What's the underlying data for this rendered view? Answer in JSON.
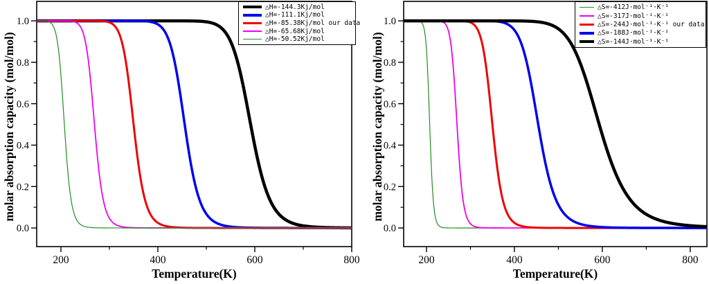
{
  "figure": {
    "background": "#ffffff",
    "text_color": "#000000",
    "axis_color": "#000000"
  },
  "chart_data": [
    {
      "id": "enthalpy-panel",
      "type": "line",
      "xlabel": "Temperature(K)",
      "ylabel": "molar absorption capacity (mol/mol)",
      "xlim": [
        150,
        800
      ],
      "ylim": [
        -0.09,
        1.094
      ],
      "xticks": [
        200,
        400,
        600,
        800
      ],
      "xtick_labels": [
        "200",
        "400",
        "600",
        "800"
      ],
      "xminor": [
        300,
        500,
        700
      ],
      "yticks": [
        0.0,
        0.2,
        0.4,
        0.6,
        0.8,
        1.0
      ],
      "ytick_labels": [
        "0.0",
        "0.2",
        "0.4",
        "0.6",
        "0.8",
        "1.0"
      ],
      "yminor": [
        0.1,
        0.3,
        0.5,
        0.7,
        0.9
      ],
      "grid": false,
      "legend_position": "top-right",
      "curve_model": "theta(T) = 1/(1+exp((dH - T*dS)/(R*T))), R = 8.314 J/(mol*K)",
      "series": [
        {
          "label": "△H=-144.3Kj/mol",
          "color": "#000000",
          "line_width": 4.5,
          "dH_J_per_mol": -144300,
          "dS_J_per_molK": -244,
          "T_half_K": 591
        },
        {
          "label": "△H=-111.1Kj/mol",
          "color": "#0000EE",
          "line_width": 3.5,
          "dH_J_per_mol": -111100,
          "dS_J_per_molK": -244,
          "T_half_K": 455
        },
        {
          "label": "△H=-85.38Kj/mol our data",
          "color": "#EE0000",
          "line_width": 3.0,
          "dH_J_per_mol": -85380,
          "dS_J_per_molK": -244,
          "T_half_K": 350
        },
        {
          "label": "△H=-65.68Kj/mol",
          "color": "#EE00EE",
          "line_width": 1.8,
          "dH_J_per_mol": -65680,
          "dS_J_per_molK": -244,
          "T_half_K": 269
        },
        {
          "label": "△H=-50.52Kj/mol",
          "color": "#228B22",
          "line_width": 1.2,
          "dH_J_per_mol": -50520,
          "dS_J_per_molK": -244,
          "T_half_K": 207
        }
      ]
    },
    {
      "id": "entropy-panel",
      "type": "line",
      "xlabel": "Temperature(K)",
      "ylabel": "molar absorption capacity (mol/mol)",
      "xlim": [
        148,
        838
      ],
      "ylim": [
        -0.09,
        1.094
      ],
      "xticks": [
        200,
        400,
        600,
        800
      ],
      "xtick_labels": [
        "200",
        "400",
        "600",
        "800"
      ],
      "xminor": [
        300,
        500,
        700
      ],
      "yticks": [
        0.0,
        0.2,
        0.4,
        0.6,
        0.8,
        1.0
      ],
      "ytick_labels": [
        "0.0",
        "0.2",
        "0.4",
        "0.6",
        "0.8",
        "1.0"
      ],
      "yminor": [
        0.1,
        0.3,
        0.5,
        0.7,
        0.9
      ],
      "grid": false,
      "legend_position": "top-right",
      "curve_model": "theta(T) = 1/(1+exp((dH - T*dS)/(R*T))), R = 8.314 J/(mol*K)",
      "series": [
        {
          "label": "△S=-412J·mol⁻¹·K⁻¹",
          "color": "#228B22",
          "line_width": 1.2,
          "dH_J_per_mol": -85380,
          "dS_J_per_molK": -412,
          "T_half_K": 207
        },
        {
          "label": "△S=-317J·mol⁻¹·K⁻¹",
          "color": "#EE00EE",
          "line_width": 1.8,
          "dH_J_per_mol": -85380,
          "dS_J_per_molK": -317,
          "T_half_K": 269
        },
        {
          "label": "△S=-244J·mol⁻¹·K⁻¹ our data",
          "color": "#EE0000",
          "line_width": 3.0,
          "dH_J_per_mol": -85380,
          "dS_J_per_molK": -244,
          "T_half_K": 350
        },
        {
          "label": "△S=-188J·mol⁻¹·K⁻¹",
          "color": "#0000EE",
          "line_width": 3.5,
          "dH_J_per_mol": -85380,
          "dS_J_per_molK": -188,
          "T_half_K": 454
        },
        {
          "label": "△S=-144J·mol⁻¹·K⁻¹",
          "color": "#000000",
          "line_width": 4.5,
          "dH_J_per_mol": -85380,
          "dS_J_per_molK": -144,
          "T_half_K": 593
        }
      ]
    }
  ]
}
